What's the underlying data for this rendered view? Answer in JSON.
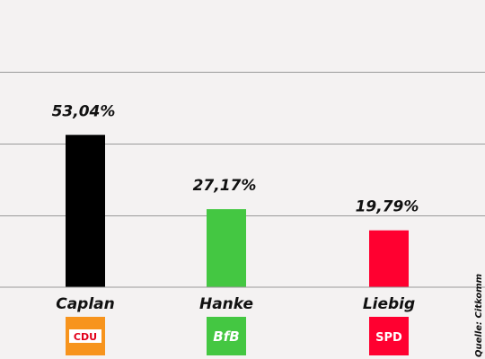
{
  "chart_data": {
    "type": "bar",
    "categories": [
      "Caplan",
      "Hanke",
      "Liebig"
    ],
    "values": [
      53.04,
      27.17,
      19.79
    ],
    "value_labels": [
      "53,04%",
      "27,17%",
      "19,79%"
    ],
    "colors": [
      "#000000",
      "#44c742",
      "#ff0030"
    ],
    "ylim": [
      0,
      100
    ],
    "grid": true,
    "source": "Quelle: Citkomm",
    "parties": [
      {
        "label": "CDU",
        "bg": "#f7941d",
        "fg": "#e2001a",
        "inner_bg": "#ffffff"
      },
      {
        "label": "BfB",
        "bg": "#44c742",
        "fg": "#ffffff"
      },
      {
        "label": "SPD",
        "bg": "#ff0030",
        "fg": "#ffffff"
      }
    ]
  }
}
